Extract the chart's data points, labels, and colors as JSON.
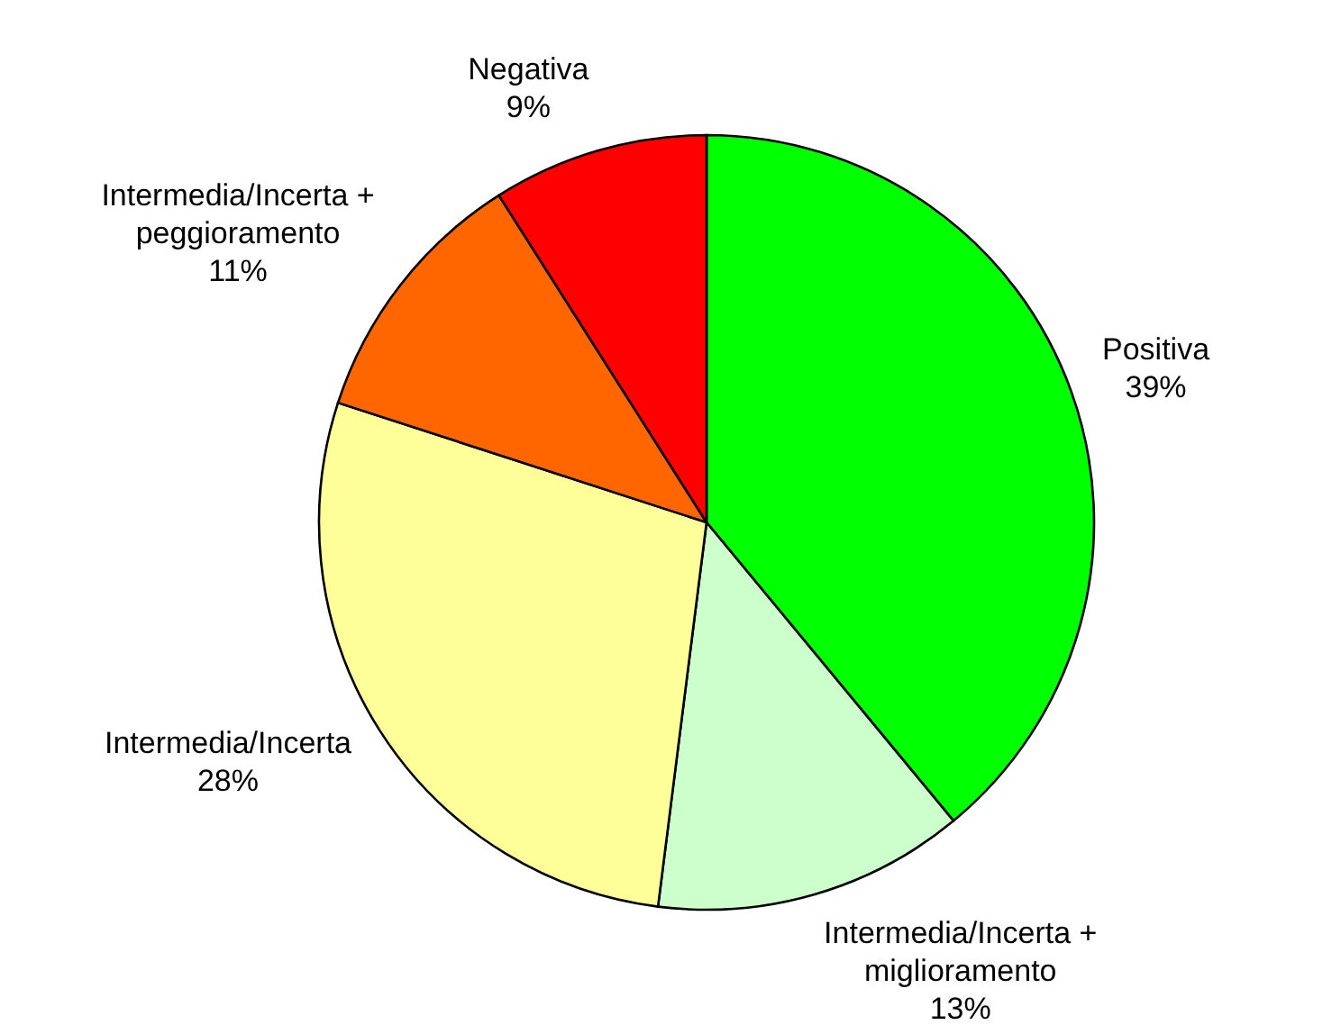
{
  "chart_data": {
    "type": "pie",
    "categories": [
      "Positiva",
      "Intermedia/Incerta + miglioramento",
      "Intermedia/Incerta",
      "Intermedia/Incerta + peggioramento",
      "Negativa"
    ],
    "values": [
      39,
      13,
      28,
      11,
      9
    ],
    "value_labels": [
      "39%",
      "13%",
      "28%",
      "11%",
      "9%"
    ],
    "colors": [
      "#00ff00",
      "#ccffcc",
      "#ffff99",
      "#ff6600",
      "#ff0000"
    ]
  }
}
